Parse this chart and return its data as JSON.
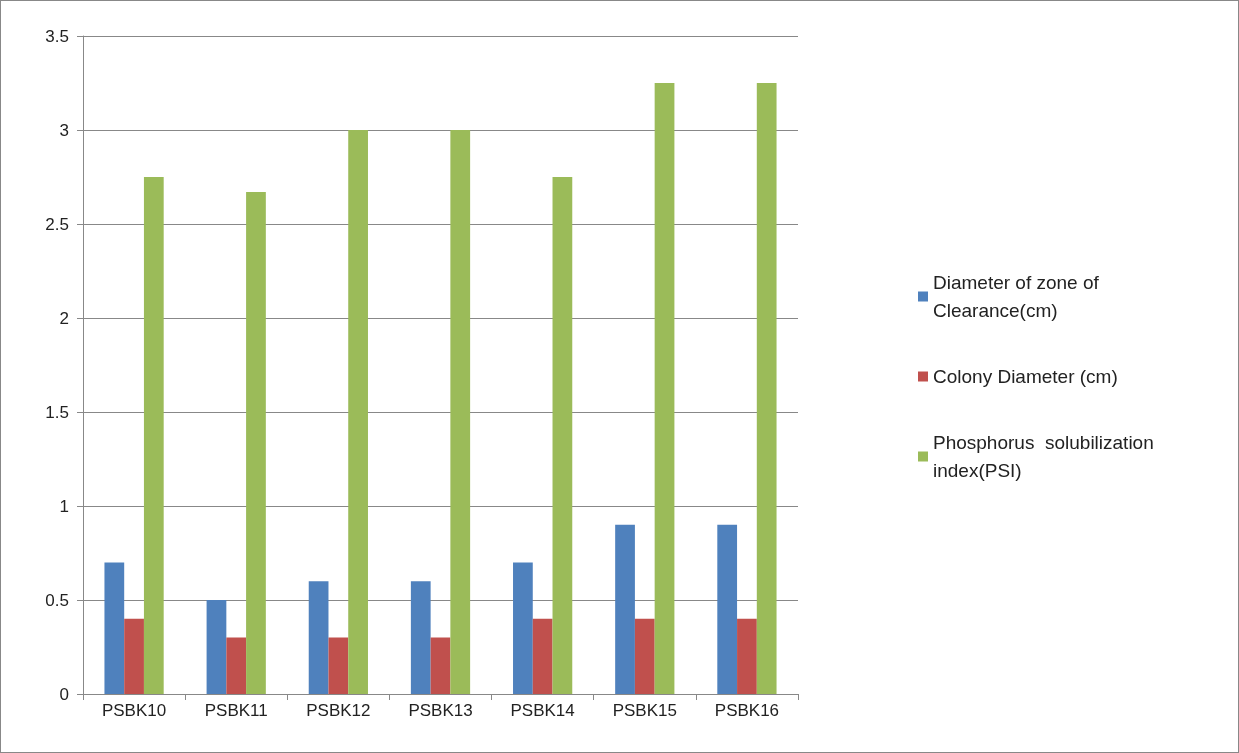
{
  "chart_data": {
    "type": "bar",
    "categories": [
      "PSBK10",
      "PSBK11",
      "PSBK12",
      "PSBK13",
      "PSBK14",
      "PSBK15",
      "PSBK16"
    ],
    "series": [
      {
        "name": "Diameter of zone of Clearance(cm)",
        "color": "#4f81bd",
        "values": [
          0.7,
          0.5,
          0.6,
          0.6,
          0.7,
          0.9,
          0.9
        ]
      },
      {
        "name": "Colony Diameter (cm)",
        "color": "#c0504d",
        "values": [
          0.4,
          0.3,
          0.3,
          0.3,
          0.4,
          0.4,
          0.4
        ]
      },
      {
        "name": "Phosphorus  solubilization index(PSI)",
        "color": "#9bbb59",
        "values": [
          2.75,
          2.67,
          3,
          3,
          2.75,
          3.25,
          3.25
        ]
      }
    ],
    "ylim": [
      0,
      3.5
    ],
    "yticks": [
      0,
      0.5,
      1,
      1.5,
      2,
      2.5,
      3,
      3.5
    ],
    "grid": "y",
    "legend": "right"
  }
}
